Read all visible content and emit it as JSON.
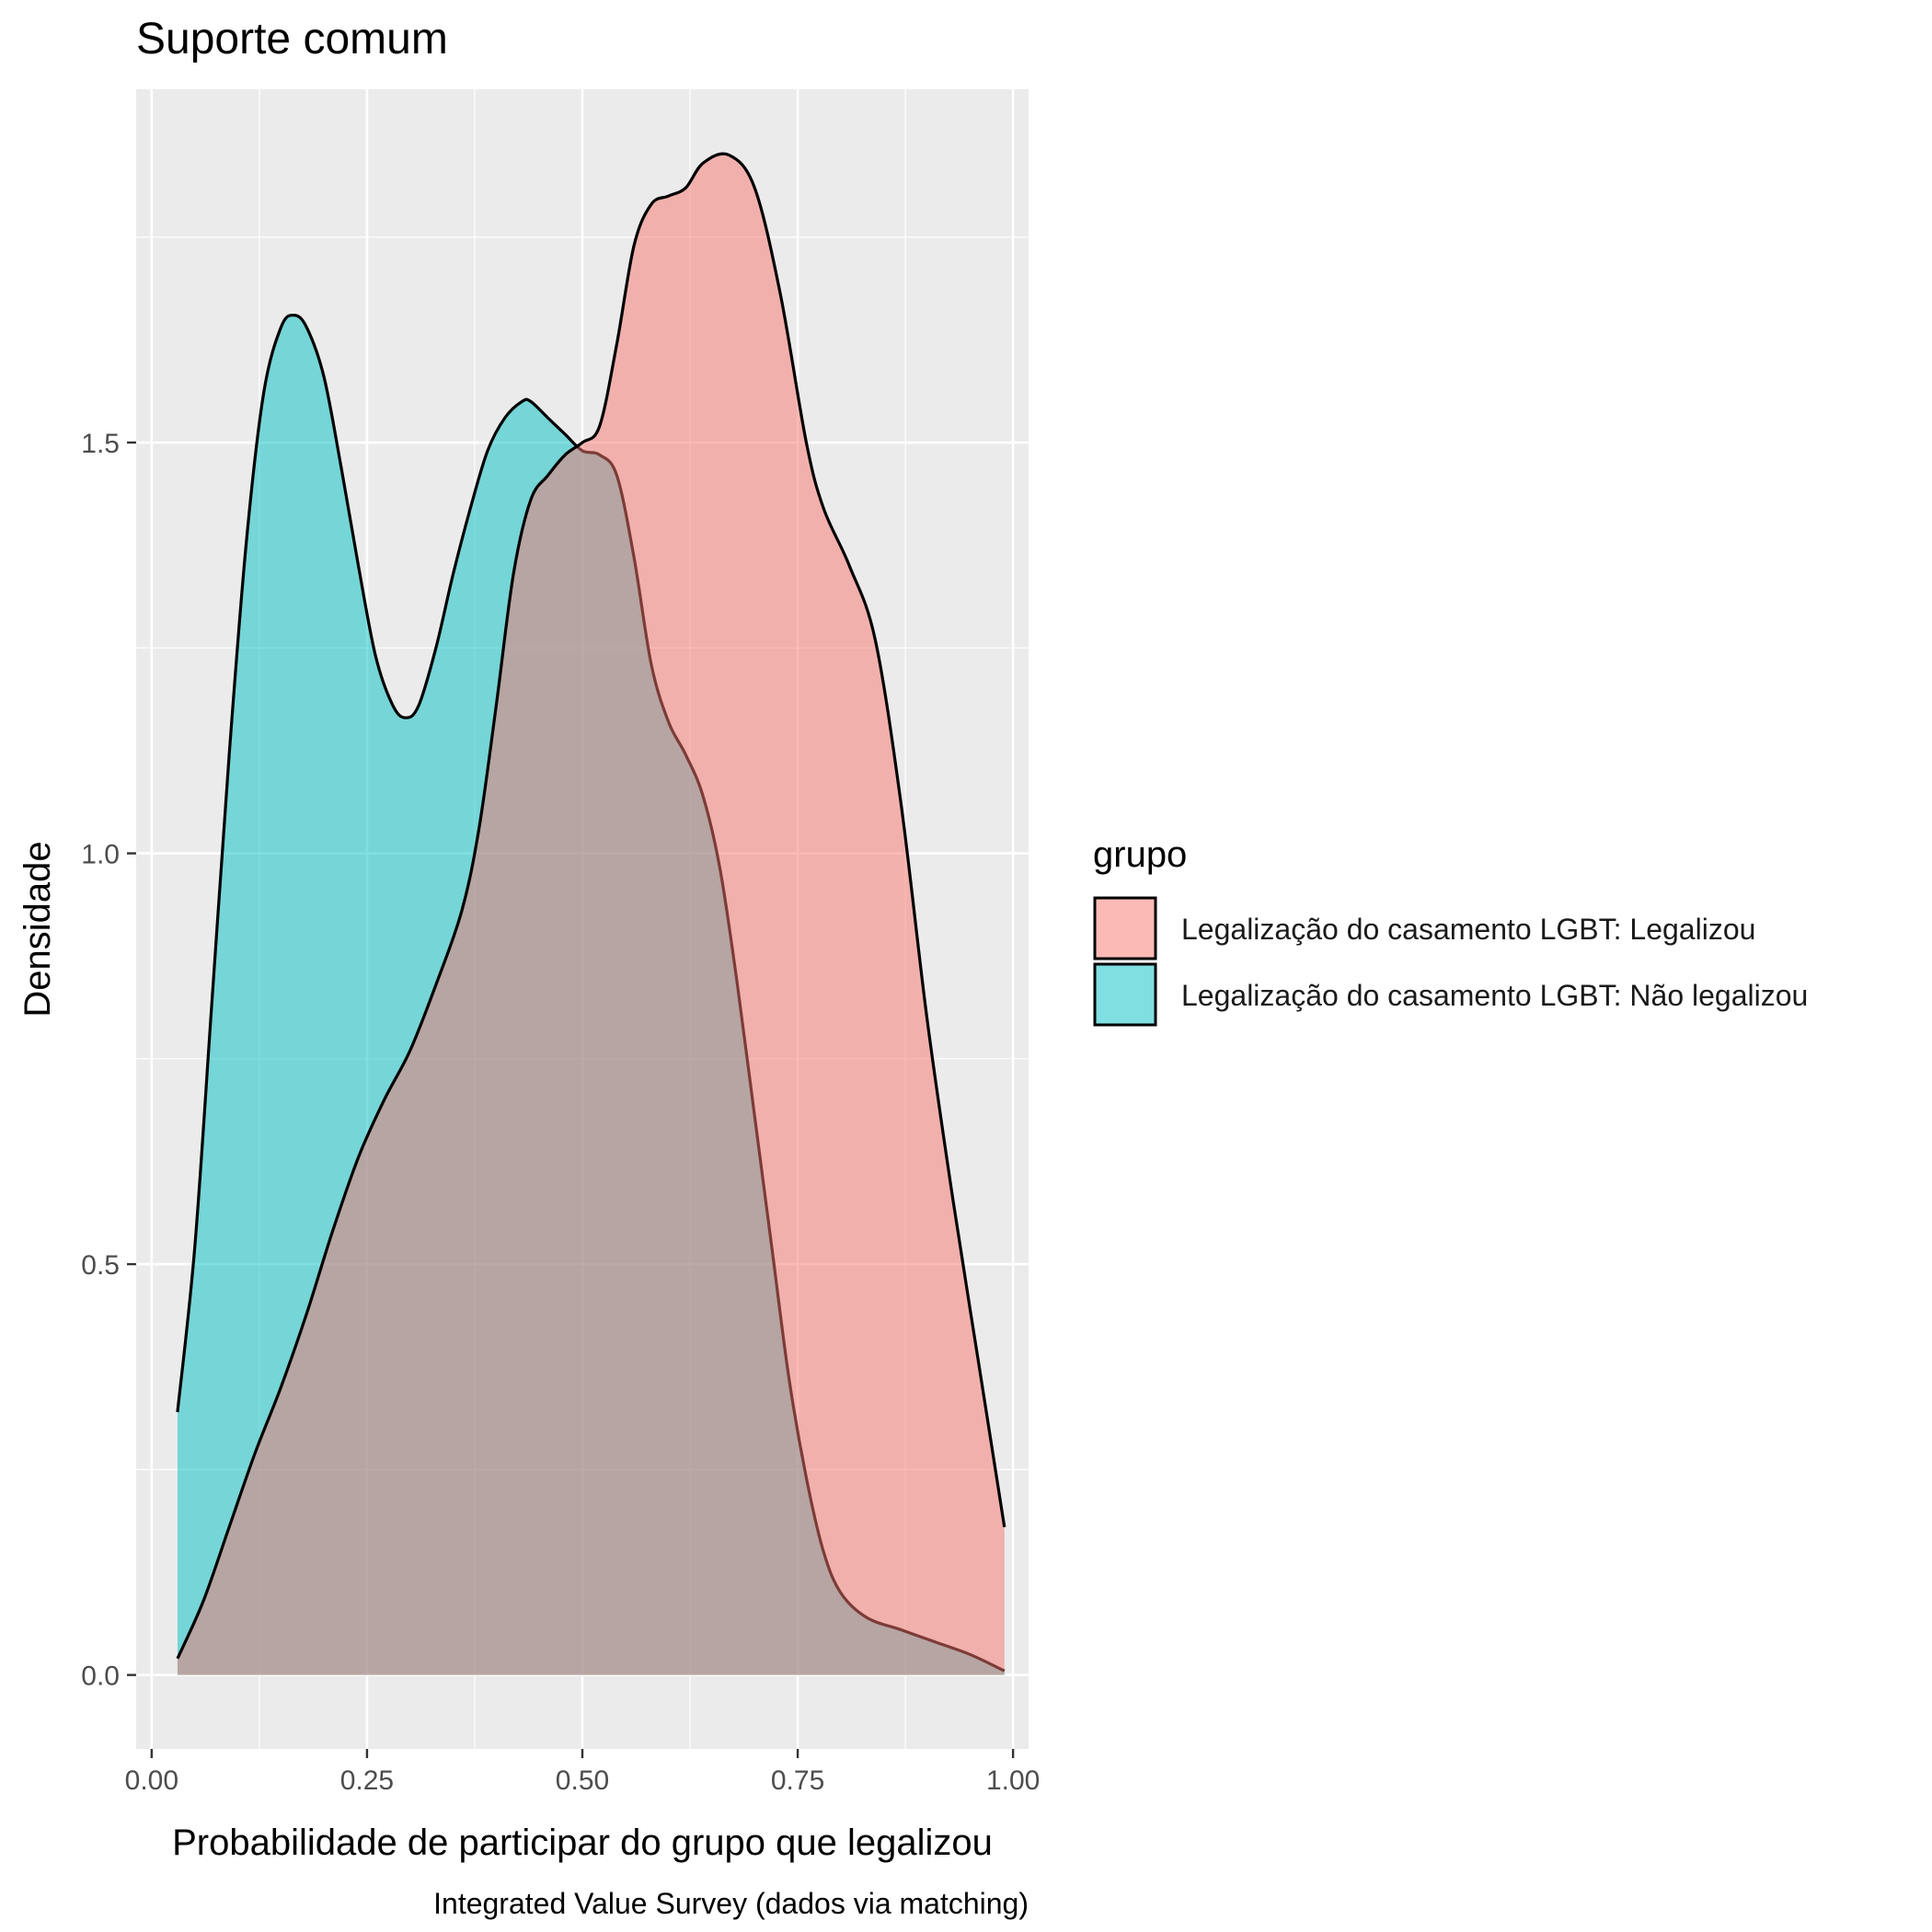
{
  "chart_data": {
    "type": "area",
    "title": "Suporte comum",
    "xlabel": "Probabilidade de participar do grupo que legalizou",
    "ylabel": "Densidade",
    "caption": "Integrated Value Survey (dados via matching)",
    "xlim": [
      -0.018,
      1.018
    ],
    "ylim": [
      -0.09,
      1.93
    ],
    "x_ticks": [
      0,
      0.25,
      0.5,
      0.75,
      1
    ],
    "x_tick_labels": [
      "0.00",
      "0.25",
      "0.50",
      "0.75",
      "1.00"
    ],
    "y_ticks": [
      0,
      0.5,
      1,
      1.5
    ],
    "y_tick_labels": [
      "0.0",
      "0.5",
      "1.0",
      "1.5"
    ],
    "grid": true,
    "legend": {
      "title": "grupo",
      "position": "right"
    },
    "series": [
      {
        "name": "Legalização do casamento LGBT: Legalizou",
        "color": "#F8766D",
        "fill_opacity": 0.5,
        "points": [
          [
            0.03,
            0.02
          ],
          [
            0.06,
            0.09
          ],
          [
            0.09,
            0.18
          ],
          [
            0.12,
            0.27
          ],
          [
            0.15,
            0.35
          ],
          [
            0.18,
            0.44
          ],
          [
            0.21,
            0.54
          ],
          [
            0.24,
            0.63
          ],
          [
            0.27,
            0.7
          ],
          [
            0.3,
            0.76
          ],
          [
            0.33,
            0.84
          ],
          [
            0.36,
            0.93
          ],
          [
            0.38,
            1.03
          ],
          [
            0.4,
            1.18
          ],
          [
            0.42,
            1.34
          ],
          [
            0.44,
            1.43
          ],
          [
            0.46,
            1.46
          ],
          [
            0.48,
            1.485
          ],
          [
            0.5,
            1.5
          ],
          [
            0.52,
            1.52
          ],
          [
            0.54,
            1.62
          ],
          [
            0.56,
            1.74
          ],
          [
            0.58,
            1.79
          ],
          [
            0.6,
            1.8
          ],
          [
            0.62,
            1.81
          ],
          [
            0.64,
            1.84
          ],
          [
            0.67,
            1.85
          ],
          [
            0.7,
            1.81
          ],
          [
            0.73,
            1.68
          ],
          [
            0.76,
            1.5
          ],
          [
            0.78,
            1.42
          ],
          [
            0.81,
            1.35
          ],
          [
            0.84,
            1.26
          ],
          [
            0.87,
            1.06
          ],
          [
            0.9,
            0.8
          ],
          [
            0.93,
            0.58
          ],
          [
            0.96,
            0.38
          ],
          [
            0.99,
            0.18
          ]
        ]
      },
      {
        "name": "Legalização do casamento LGBT: Não legalizou",
        "color": "#00BFC4",
        "fill_opacity": 0.5,
        "points": [
          [
            0.03,
            0.32
          ],
          [
            0.05,
            0.52
          ],
          [
            0.07,
            0.82
          ],
          [
            0.09,
            1.12
          ],
          [
            0.11,
            1.38
          ],
          [
            0.13,
            1.56
          ],
          [
            0.15,
            1.64
          ],
          [
            0.165,
            1.655
          ],
          [
            0.18,
            1.64
          ],
          [
            0.2,
            1.58
          ],
          [
            0.22,
            1.47
          ],
          [
            0.24,
            1.35
          ],
          [
            0.26,
            1.24
          ],
          [
            0.28,
            1.18
          ],
          [
            0.295,
            1.165
          ],
          [
            0.31,
            1.18
          ],
          [
            0.33,
            1.25
          ],
          [
            0.35,
            1.34
          ],
          [
            0.37,
            1.42
          ],
          [
            0.39,
            1.49
          ],
          [
            0.41,
            1.53
          ],
          [
            0.43,
            1.55
          ],
          [
            0.44,
            1.55
          ],
          [
            0.46,
            1.53
          ],
          [
            0.48,
            1.51
          ],
          [
            0.5,
            1.49
          ],
          [
            0.52,
            1.485
          ],
          [
            0.54,
            1.46
          ],
          [
            0.56,
            1.36
          ],
          [
            0.58,
            1.23
          ],
          [
            0.6,
            1.16
          ],
          [
            0.62,
            1.12
          ],
          [
            0.64,
            1.07
          ],
          [
            0.66,
            0.98
          ],
          [
            0.68,
            0.84
          ],
          [
            0.7,
            0.68
          ],
          [
            0.72,
            0.52
          ],
          [
            0.74,
            0.36
          ],
          [
            0.76,
            0.24
          ],
          [
            0.78,
            0.15
          ],
          [
            0.8,
            0.1
          ],
          [
            0.83,
            0.07
          ],
          [
            0.87,
            0.055
          ],
          [
            0.91,
            0.04
          ],
          [
            0.95,
            0.025
          ],
          [
            0.99,
            0.005
          ]
        ]
      }
    ]
  }
}
